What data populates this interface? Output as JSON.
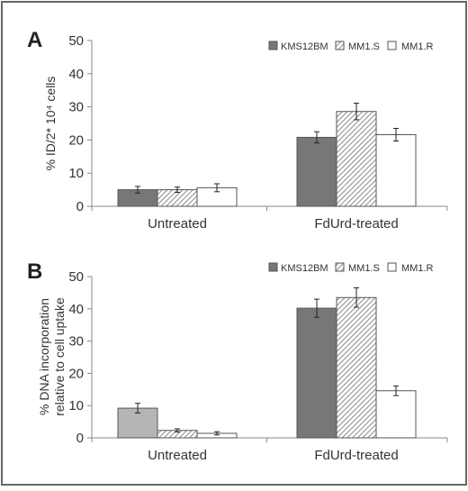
{
  "colors": {
    "frame": "#666666",
    "axis": "#888888",
    "text": "#333333",
    "kms12bm": "#777777",
    "kms12bm_untreated_panelB": "#b5b5b5",
    "mm1s_stripe": "#8a8a8a",
    "mm1r": "#ffffff"
  },
  "chart_data": [
    {
      "type": "bar",
      "panel_label": "A",
      "categories": [
        "Untreated",
        "FdUrd-treated"
      ],
      "series": [
        {
          "name": "KMS12BM",
          "pattern": "solid-dark",
          "values": [
            5.0,
            20.8
          ],
          "errors": [
            1.0,
            1.7
          ]
        },
        {
          "name": "MM1.S",
          "pattern": "diagonal-stripes",
          "values": [
            5.0,
            28.6
          ],
          "errors": [
            0.8,
            2.5
          ]
        },
        {
          "name": "MM1.R",
          "pattern": "white",
          "values": [
            5.6,
            21.6
          ],
          "errors": [
            1.2,
            1.9
          ]
        }
      ],
      "ylabel": "% ID/2* 10⁴ cells",
      "xlabel": "",
      "ylim": [
        0,
        50
      ],
      "yticks": [
        0,
        10,
        20,
        30,
        40,
        50
      ],
      "legend_placement": "top-right",
      "grid": false
    },
    {
      "type": "bar",
      "panel_label": "B",
      "categories": [
        "Untreated",
        "FdUrd-treated"
      ],
      "series": [
        {
          "name": "KMS12BM",
          "pattern": "solid-dark",
          "values": [
            9.2,
            40.2
          ],
          "errors": [
            1.5,
            2.8
          ]
        },
        {
          "name": "MM1.S",
          "pattern": "diagonal-stripes",
          "values": [
            2.3,
            43.5
          ],
          "errors": [
            0.5,
            3.0
          ]
        },
        {
          "name": "MM1.R",
          "pattern": "white",
          "values": [
            1.4,
            14.6
          ],
          "errors": [
            0.5,
            1.5
          ]
        }
      ],
      "ylabel": "% DNA incorporation relative to cell uptake",
      "ylabel_lines": [
        "% DNA incorporation",
        "relative to cell uptake"
      ],
      "xlabel": "",
      "ylim": [
        0,
        50
      ],
      "yticks": [
        0,
        10,
        20,
        30,
        40,
        50
      ],
      "legend_placement": "top-right",
      "grid": false
    }
  ]
}
